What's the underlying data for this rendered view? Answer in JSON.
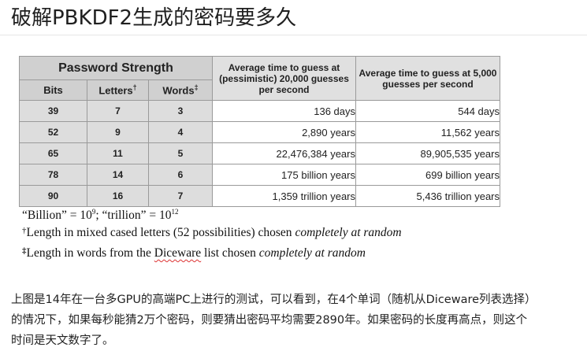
{
  "title": "破解PBKDF2生成的密码要多久",
  "table": {
    "group_header": "Password Strength",
    "col_bits": "Bits",
    "col_letters": "Letters",
    "col_letters_mark": "†",
    "col_words": "Words",
    "col_words_mark": "‡",
    "col_pessimistic": "Average time to guess at (pessimistic) 20,000 guesses per second",
    "col_optimistic": "Average time to guess at 5,000 guesses per second",
    "rows": [
      {
        "bits": "39",
        "letters": "7",
        "words": "3",
        "pessimistic": "136 days",
        "optimistic": "544 days"
      },
      {
        "bits": "52",
        "letters": "9",
        "words": "4",
        "pessimistic": "2,890 years",
        "optimistic": "11,562 years"
      },
      {
        "bits": "65",
        "letters": "11",
        "words": "5",
        "pessimistic": "22,476,384 years",
        "optimistic": "89,905,535 years"
      },
      {
        "bits": "78",
        "letters": "14",
        "words": "6",
        "pessimistic": "175 billion years",
        "optimistic": "699 billion years"
      },
      {
        "bits": "90",
        "letters": "16",
        "words": "7",
        "pessimistic": "1,359 trillion years",
        "optimistic": "5,436 trillion years"
      }
    ]
  },
  "notes": {
    "billion_prefix": "“Billion” = 10",
    "billion_exp": "9",
    "trillion_prefix": "; “trillion” = 10",
    "trillion_exp": "12",
    "letters_mark": "†",
    "letters_text": "Length in mixed cased letters (52 possibilities) chosen ",
    "letters_em": "completely at random",
    "words_mark": "‡",
    "words_text_a": "Length in words from the ",
    "words_link": "Diceware",
    "words_text_b": " list chosen ",
    "words_em": "completely at random"
  },
  "paragraph": {
    "line1": "上图是14年在一台多GPU的高端PC上进行的测试，可以看到，在4个单词（随机从Diceware列表选择）",
    "line2": "的情况下，如果每秒能猜2万个密码，则要猜出密码平均需要2890年。如果密码的长度再高点，则这个",
    "line3": "时间是天文数字了。"
  }
}
